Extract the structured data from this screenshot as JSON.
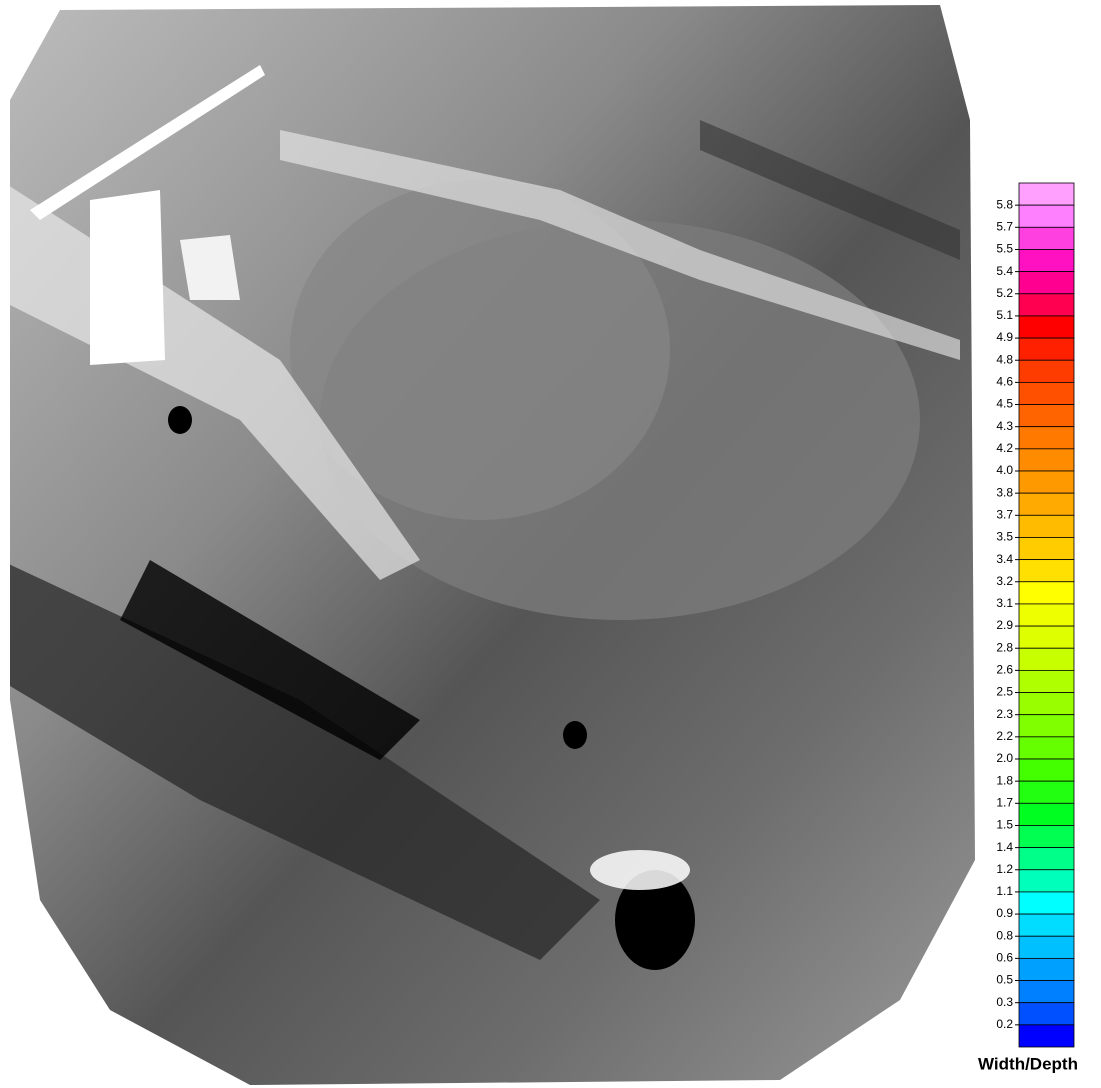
{
  "colorbar": {
    "title": "Width/Depth",
    "ticks": [
      5.8,
      5.7,
      5.5,
      5.4,
      5.2,
      5.1,
      4.9,
      4.8,
      4.6,
      4.5,
      4.3,
      4.2,
      {
        "value": 4,
        "label": "4.0"
      },
      3.8,
      3.7,
      3.5,
      3.4,
      3.2,
      3.1,
      2.9,
      2.8,
      2.6,
      2.5,
      2.3,
      2.2,
      {
        "value": 2,
        "label": "2.0"
      },
      1.8,
      1.7,
      1.5,
      1.4,
      1.2,
      1.1,
      0.9,
      0.8,
      0.6,
      0.5,
      0.3,
      0.2
    ],
    "colors": [
      "#ffa0ff",
      "#ff80ff",
      "#ff40e0",
      "#ff10c0",
      "#ff0090",
      "#ff0050",
      "#ff0000",
      "#ff2000",
      "#ff3c00",
      "#ff5000",
      "#ff6400",
      "#ff7800",
      "#ff8c00",
      "#ff9900",
      "#ffaa00",
      "#ffbb00",
      "#ffcc00",
      "#ffe000",
      "#ffff00",
      "#eeff00",
      "#ddff00",
      "#c8ff00",
      "#b0ff00",
      "#99ff00",
      "#80ff00",
      "#66ff00",
      "#44ff00",
      "#22ff10",
      "#00ff20",
      "#00ff50",
      "#00ff88",
      "#00ffbb",
      "#00ffff",
      "#00ddff",
      "#00c0ff",
      "#00a0ff",
      "#0080ff",
      "#0050ff",
      "#0000ff"
    ]
  }
}
